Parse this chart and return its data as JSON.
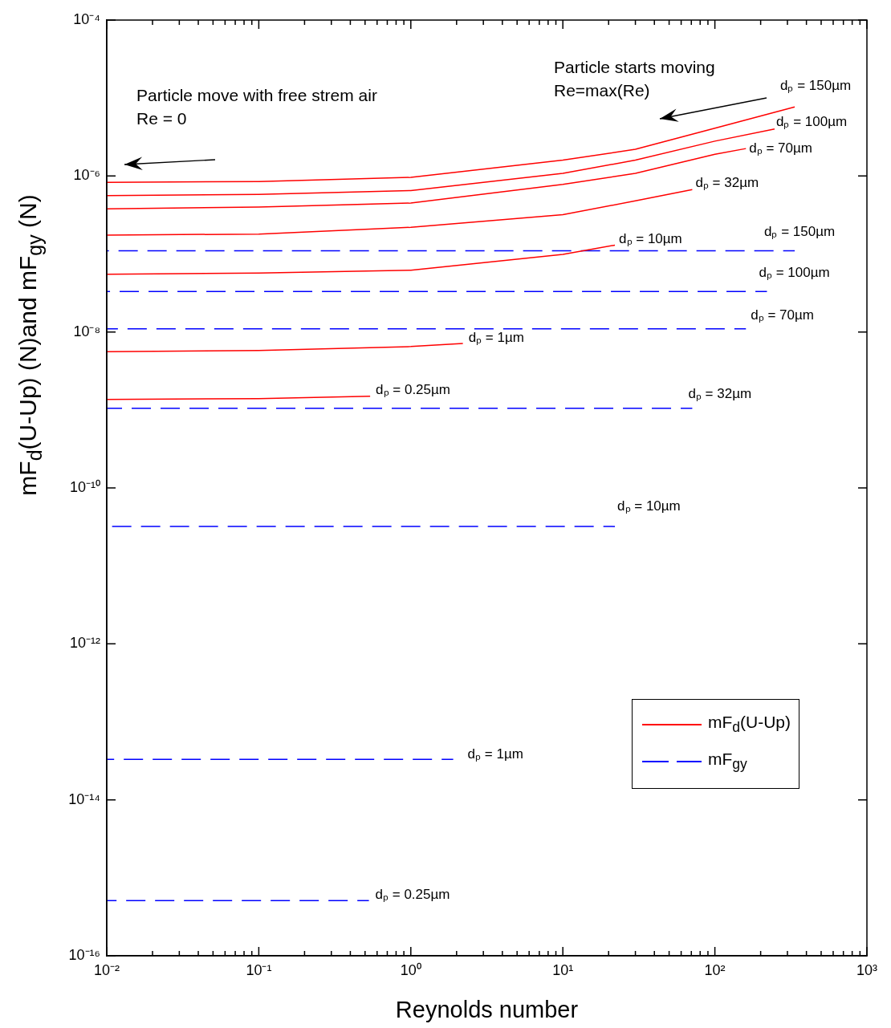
{
  "chart_data": {
    "type": "line",
    "xlabel": "Reynolds number",
    "ylabel": "mF$_{d}$(U-Up) (N)and mF$_{gy}$  (N)",
    "log": "xy",
    "xlim": [
      0.01,
      1000
    ],
    "ylim": [
      1e-16,
      0.0001
    ],
    "xticks": [
      {
        "value": 0.01,
        "label": "10⁻²"
      },
      {
        "value": 0.02,
        "label": null
      },
      {
        "value": 0.03,
        "label": null
      },
      {
        "value": 0.04,
        "label": null
      },
      {
        "value": 0.05,
        "label": null
      },
      {
        "value": 0.06,
        "label": null
      },
      {
        "value": 0.07,
        "label": null
      },
      {
        "value": 0.08,
        "label": null
      },
      {
        "value": 0.09,
        "label": null
      },
      {
        "value": 0.1,
        "label": "10⁻¹"
      },
      {
        "value": 0.2,
        "label": null
      },
      {
        "value": 0.3,
        "label": null
      },
      {
        "value": 0.4,
        "label": null
      },
      {
        "value": 0.5,
        "label": null
      },
      {
        "value": 0.6,
        "label": null
      },
      {
        "value": 0.7,
        "label": null
      },
      {
        "value": 0.8,
        "label": null
      },
      {
        "value": 0.9,
        "label": null
      },
      {
        "value": 1,
        "label": "10⁰"
      },
      {
        "value": 2,
        "label": null
      },
      {
        "value": 3,
        "label": null
      },
      {
        "value": 4,
        "label": null
      },
      {
        "value": 5,
        "label": null
      },
      {
        "value": 6,
        "label": null
      },
      {
        "value": 7,
        "label": null
      },
      {
        "value": 8,
        "label": null
      },
      {
        "value": 9,
        "label": null
      },
      {
        "value": 10,
        "label": "10¹"
      },
      {
        "value": 20,
        "label": null
      },
      {
        "value": 30,
        "label": null
      },
      {
        "value": 40,
        "label": null
      },
      {
        "value": 50,
        "label": null
      },
      {
        "value": 60,
        "label": null
      },
      {
        "value": 70,
        "label": null
      },
      {
        "value": 80,
        "label": null
      },
      {
        "value": 90,
        "label": null
      },
      {
        "value": 100,
        "label": "10²"
      },
      {
        "value": 200,
        "label": null
      },
      {
        "value": 300,
        "label": null
      },
      {
        "value": 400,
        "label": null
      },
      {
        "value": 500,
        "label": null
      },
      {
        "value": 600,
        "label": null
      },
      {
        "value": 700,
        "label": null
      },
      {
        "value": 800,
        "label": null
      },
      {
        "value": 900,
        "label": null
      },
      {
        "value": 1000,
        "label": "10³"
      }
    ],
    "yticks": [
      {
        "value": 1e-16,
        "label": "10⁻¹⁶"
      },
      {
        "value": 1e-14,
        "label": "10⁻¹⁴"
      },
      {
        "value": 1e-12,
        "label": "10⁻¹²"
      },
      {
        "value": 1e-10,
        "label": "10⁻¹⁰"
      },
      {
        "value": 1e-08,
        "label": "10⁻⁸"
      },
      {
        "value": 1e-06,
        "label": "10⁻⁶"
      },
      {
        "value": 0.0001,
        "label": "10⁻⁴"
      }
    ],
    "grid": false,
    "legend": "bottom right",
    "series": [
      {
        "type": "line",
        "name": "mF$_{d}$(U-Up)",
        "color": "#ff0000",
        "line_style": "solid",
        "x": [
          0.01,
          0.1,
          1,
          10,
          30,
          100,
          335
        ],
        "values": [
          8.3e-07,
          8.5e-07,
          9.6e-07,
          1.6e-06,
          2.2e-06,
          4.1e-06,
          7.7e-06
        ]
      },
      {
        "type": "line",
        "color": "#ff0000",
        "line_style": "solid",
        "x": [
          0.01,
          0.1,
          1,
          10,
          30,
          100,
          247
        ],
        "values": [
          5.6e-07,
          5.8e-07,
          6.5e-07,
          1.08e-06,
          1.6e-06,
          2.8e-06,
          4e-06
        ]
      },
      {
        "type": "line",
        "color": "#ff0000",
        "line_style": "solid",
        "x": [
          0.01,
          0.1,
          1,
          10,
          30,
          100,
          160
        ],
        "values": [
          3.8e-07,
          4e-07,
          4.5e-07,
          7.8e-07,
          1.08e-06,
          1.9e-06,
          2.25e-06
        ]
      },
      {
        "type": "line",
        "color": "#ff0000",
        "line_style": "solid",
        "x": [
          0.01,
          0.1,
          1,
          10,
          30,
          71
        ],
        "values": [
          1.75e-07,
          1.8e-07,
          2.2e-07,
          3.2e-07,
          4.8e-07,
          6.7e-07
        ]
      },
      {
        "type": "line",
        "color": "#ff0000",
        "line_style": "solid",
        "x": [
          0.01,
          0.1,
          1,
          10,
          22
        ],
        "values": [
          5.5e-08,
          5.7e-08,
          6.2e-08,
          9.9e-08,
          1.3e-07
        ]
      },
      {
        "type": "line",
        "color": "#ff0000",
        "line_style": "solid",
        "x": [
          0.01,
          0.1,
          1,
          2.2
        ],
        "values": [
          5.6e-09,
          5.8e-09,
          6.5e-09,
          7.1e-09
        ]
      },
      {
        "type": "line",
        "color": "#ff0000",
        "line_style": "solid",
        "x": [
          0.01,
          0.1,
          0.54
        ],
        "values": [
          1.36e-09,
          1.4e-09,
          1.5e-09
        ]
      },
      {
        "type": "line",
        "name": "mF$_{gy}$",
        "color": "#0000ff",
        "line_style": "dashed",
        "x": [
          0.01,
          335
        ],
        "values": [
          1.1e-07,
          1.1e-07
        ]
      },
      {
        "type": "line",
        "color": "#0000ff",
        "line_style": "dashed",
        "x": [
          0.01,
          220
        ],
        "values": [
          3.3e-08,
          3.3e-08
        ]
      },
      {
        "type": "line",
        "color": "#0000ff",
        "line_style": "dashed",
        "x": [
          0.01,
          160
        ],
        "values": [
          1.1e-08,
          1.1e-08
        ]
      },
      {
        "type": "line",
        "color": "#0000ff",
        "line_style": "dashed",
        "x": [
          0.01,
          71
        ],
        "values": [
          1.05e-09,
          1.05e-09
        ]
      },
      {
        "type": "line",
        "color": "#0000ff",
        "line_style": "dashed",
        "x": [
          0.01,
          22
        ],
        "values": [
          3.2e-11,
          3.2e-11
        ]
      },
      {
        "type": "line",
        "color": "#0000ff",
        "line_style": "dashed",
        "x": [
          0.01,
          1.9
        ],
        "values": [
          3.3e-14,
          3.3e-14
        ]
      },
      {
        "type": "line",
        "color": "#0000ff",
        "line_style": "dashed",
        "x": [
          0.01,
          0.53
        ],
        "values": [
          5.1e-16,
          5.1e-16
        ]
      }
    ],
    "annotations": [
      "Particle move with free strem air",
      "Re = 0",
      "Particle starts moving",
      "Re=max(Re)",
      "dₚ = 150µm",
      "dₚ = 100µm",
      "dₚ = 70µm",
      "dₚ = 32µm",
      "dₚ = 10µm",
      "dₚ = 150µm",
      "dₚ = 100µm",
      "dₚ = 70µm",
      "dₚ = 1µm",
      "dₚ = 0.25µm",
      "dₚ = 32µm",
      "dₚ = 10µm",
      "dₚ = 1µm",
      "dₚ = 0.25µm"
    ]
  }
}
